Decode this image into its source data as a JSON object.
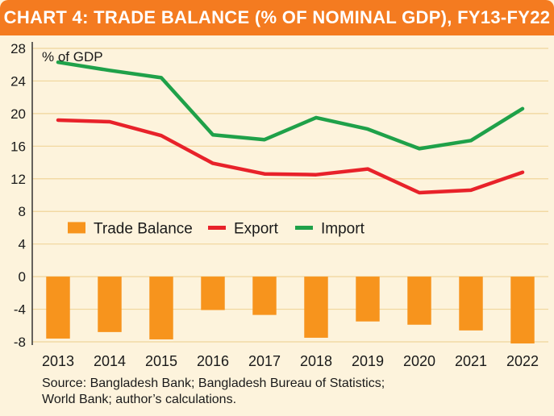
{
  "title": "CHART 4: TRADE BALANCE (% OF NOMINAL GDP), FY13-FY22",
  "source_lines": [
    "Source: Bangladesh Bank; Bangladesh Bureau of Statistics;",
    "World Bank; author’s calculations."
  ],
  "colors": {
    "title_bar": "#f47b20",
    "background": "#fdf3dc",
    "trade_balance": "#f7941d",
    "export": "#e8222a",
    "import": "#1fa149",
    "grid": "#f0d59a"
  },
  "chart_data": {
    "type": "bar",
    "ylabel": "% of GDP",
    "ylim": [
      -8,
      28
    ],
    "yticks": [
      28,
      24,
      20,
      16,
      12,
      8,
      4,
      0,
      -4,
      -8
    ],
    "grid": true,
    "legend_position": "center",
    "categories": [
      "2013",
      "2014",
      "2015",
      "2016",
      "2017",
      "2018",
      "2019",
      "2020",
      "2021",
      "2022"
    ],
    "series": [
      {
        "name": "Trade Balance",
        "type": "bar",
        "values": [
          -7.6,
          -6.8,
          -7.7,
          -4.1,
          -4.7,
          -7.5,
          -5.5,
          -5.9,
          -6.6,
          -8.2
        ]
      },
      {
        "name": "Export",
        "type": "line",
        "values": [
          19.2,
          19.0,
          17.3,
          13.9,
          12.6,
          12.5,
          13.2,
          10.3,
          10.6,
          12.8
        ]
      },
      {
        "name": "Import",
        "type": "line",
        "values": [
          26.3,
          25.3,
          24.4,
          17.4,
          16.8,
          19.5,
          18.1,
          15.7,
          16.7,
          20.6
        ]
      }
    ]
  }
}
